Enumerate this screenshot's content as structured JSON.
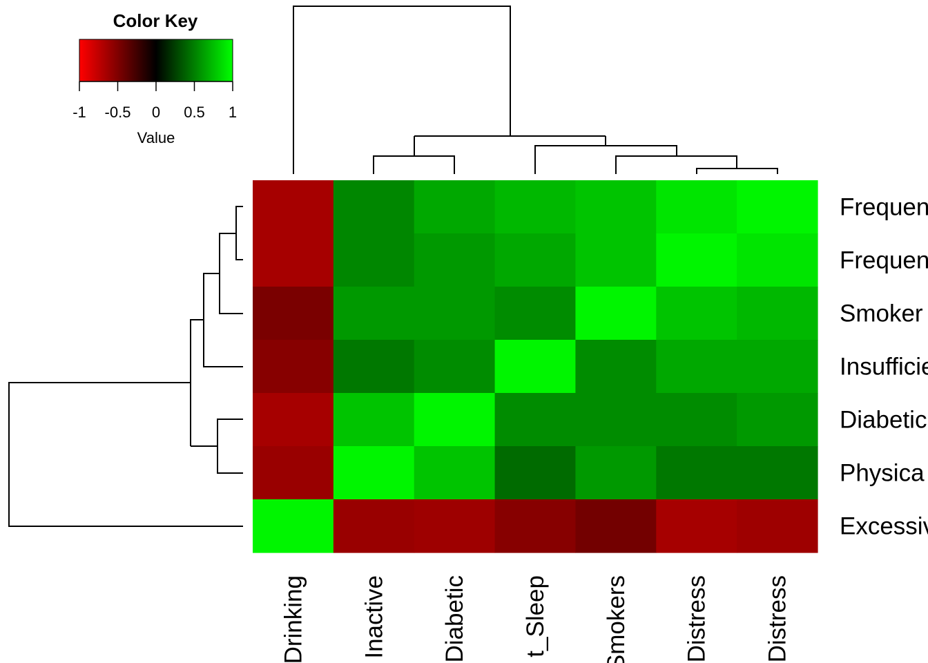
{
  "chart_data": {
    "type": "heatmap",
    "color_key": {
      "title": "Color Key",
      "xlabel": "Value",
      "range": [
        -1,
        1
      ],
      "ticks": [
        "-1",
        "-0.5",
        "0",
        "0.5",
        "1"
      ],
      "colors": {
        "low": "#ff0000",
        "mid": "#000000",
        "high": "#00ff00"
      }
    },
    "column_labels": [
      "Drinking",
      "Inactive",
      "Diabetic",
      "t_Sleep",
      "Smokers",
      "Distress",
      "Distress"
    ],
    "row_labels": [
      "Frequen",
      "Frequen",
      "Smoker",
      "Insufficie",
      "Diabetic",
      "Physica",
      "Excessiv"
    ],
    "values": [
      [
        -0.65,
        0.53,
        0.66,
        0.72,
        0.77,
        0.9,
        0.96
      ],
      [
        -0.65,
        0.53,
        0.6,
        0.66,
        0.77,
        0.96,
        0.9
      ],
      [
        -0.48,
        0.6,
        0.6,
        0.55,
        0.96,
        0.77,
        0.72
      ],
      [
        -0.53,
        0.47,
        0.55,
        0.96,
        0.55,
        0.66,
        0.66
      ],
      [
        -0.65,
        0.77,
        0.96,
        0.55,
        0.55,
        0.55,
        0.6
      ],
      [
        -0.6,
        0.96,
        0.77,
        0.42,
        0.6,
        0.47,
        0.47
      ],
      [
        0.96,
        -0.6,
        -0.62,
        -0.53,
        -0.45,
        -0.65,
        -0.62
      ]
    ],
    "row_dendrogram": true,
    "column_dendrogram": true,
    "grid": false
  }
}
